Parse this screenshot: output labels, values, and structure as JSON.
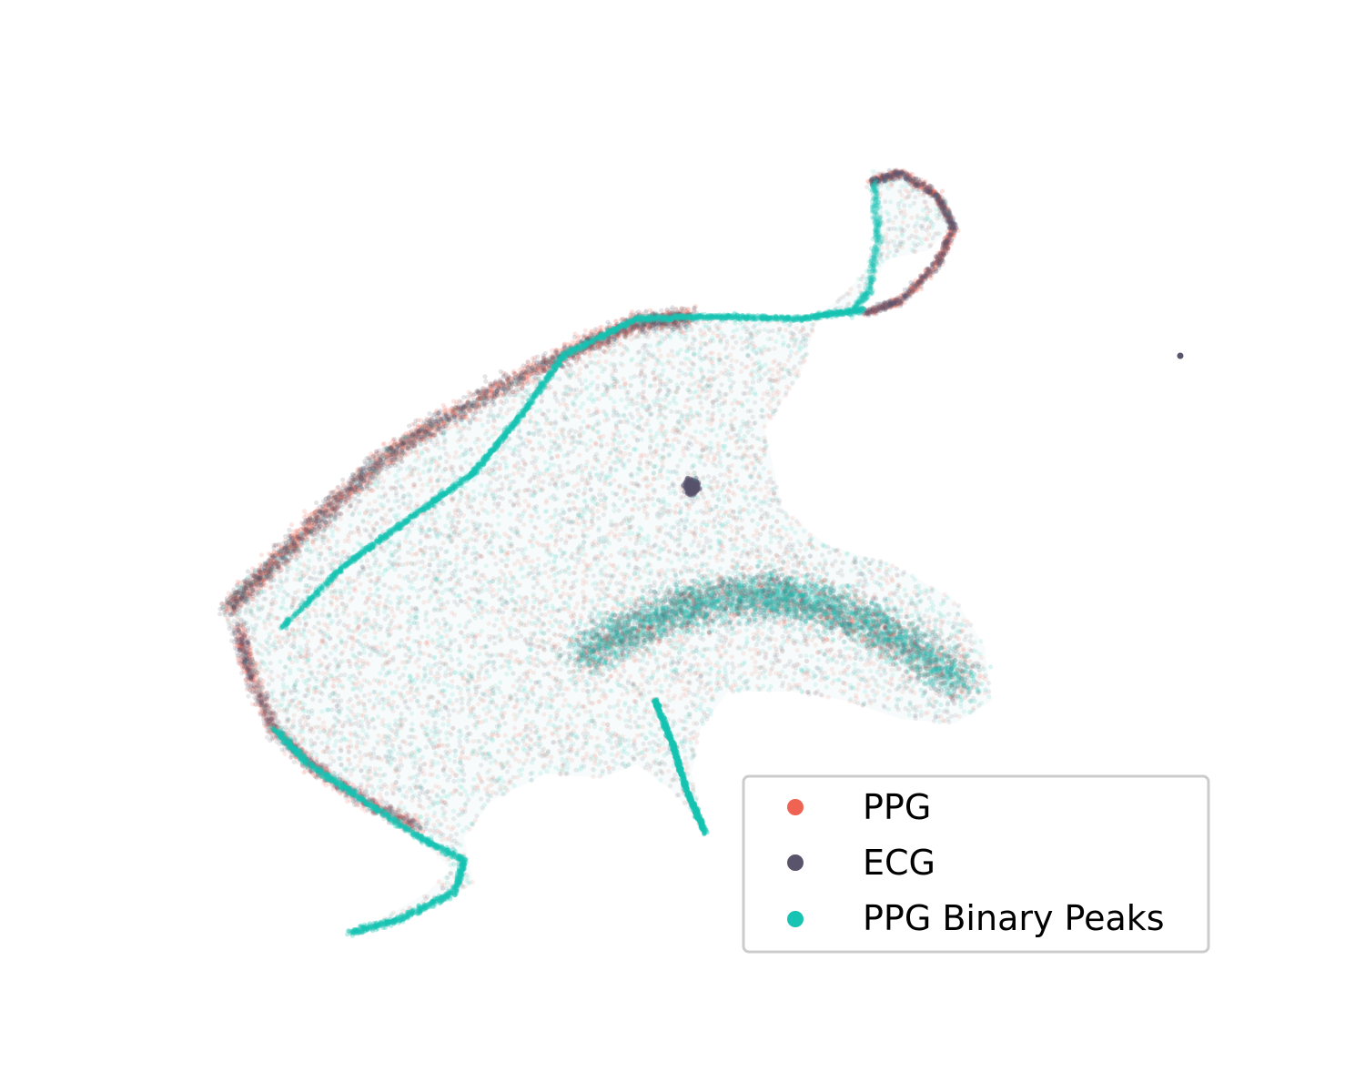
{
  "chart_data": {
    "type": "scatter",
    "title": "",
    "xlabel": "",
    "ylabel": "",
    "axes_visible": false,
    "grid": false,
    "legend_position": "lower-right",
    "series": [
      {
        "name": "PPG",
        "color": "#ee6352"
      },
      {
        "name": "ECG",
        "color": "#59546c"
      },
      {
        "name": "PPG Binary Peaks",
        "color": "#17c3b2"
      }
    ],
    "point_opacity": 0.1,
    "outlier_point": {
      "series": "ECG",
      "count": 1
    }
  }
}
